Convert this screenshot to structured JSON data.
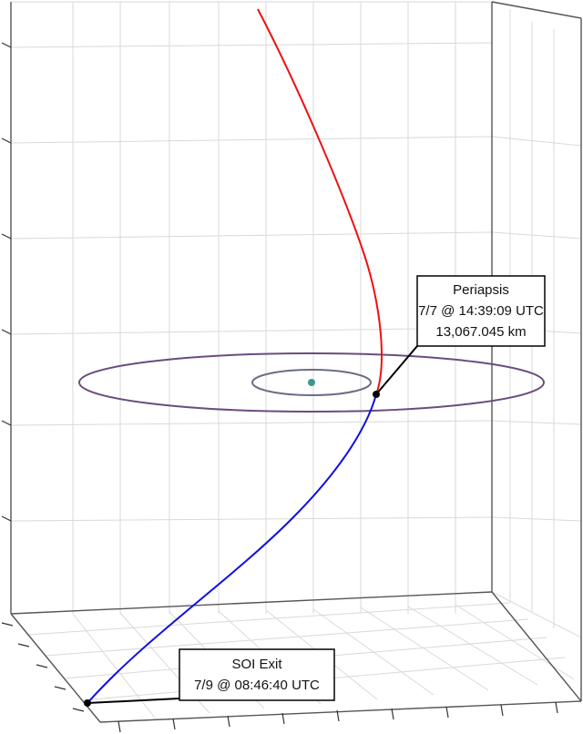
{
  "scene": {
    "colors": {
      "background": "#ffffff",
      "grid": "#d9d9d9",
      "axis_frame": "#555555",
      "incoming_trajectory": "#ee1111",
      "outgoing_trajectory": "#1010e0",
      "outer_orbit": "#6a4c7e",
      "inner_orbit": "#6a6e86",
      "planet": "#3a9a8a",
      "marker": "#000000"
    },
    "icons": [
      "periapsis-marker",
      "soi-exit-marker",
      "planet-marker"
    ]
  },
  "annotations": {
    "periapsis": {
      "title": "Periapsis",
      "time": "7/7 @ 14:39:09 UTC",
      "distance": "13,067.045 km"
    },
    "soi_exit": {
      "title": "SOI Exit",
      "time": "7/9 @ 08:46:40 UTC"
    }
  }
}
